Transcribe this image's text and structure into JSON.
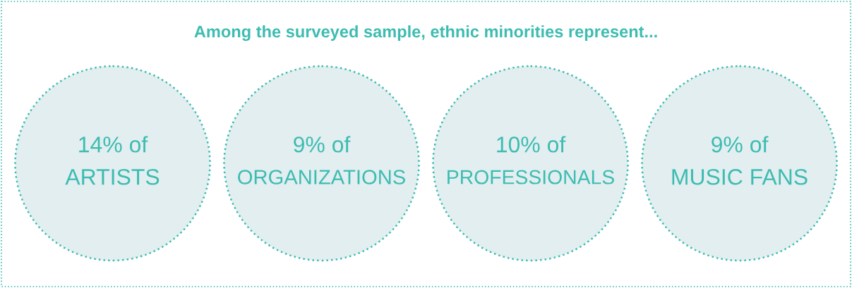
{
  "chart_data": {
    "type": "other",
    "title": "Among the surveyed sample, ethnic minorities represent...",
    "categories": [
      "ARTISTS",
      "ORGANIZATIONS",
      "PROFESSIONALS",
      "MUSIC FANS"
    ],
    "values": [
      14,
      9,
      10,
      9
    ],
    "value_labels": [
      "14% of",
      "9% of",
      "10% of",
      "9% of"
    ],
    "color": "#3dbcb1",
    "colors": [
      "#e2eef0",
      "#e2eef0",
      "#e2eef0",
      "#e2eef0"
    ]
  }
}
